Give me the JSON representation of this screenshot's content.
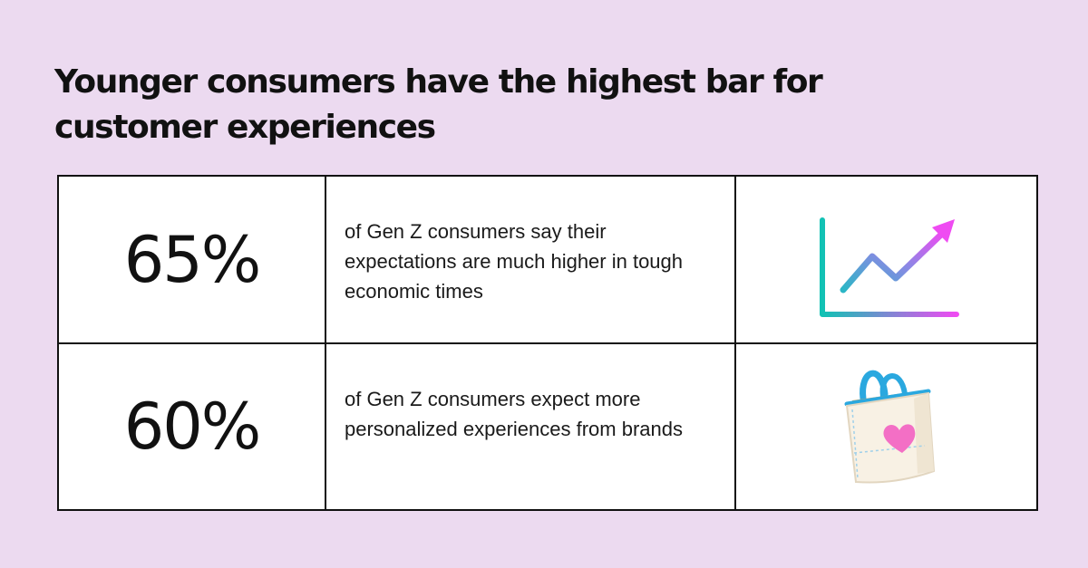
{
  "title": "Younger consumers have the highest bar for customer experiences",
  "stats": [
    {
      "value": "65%",
      "description": "of Gen Z consumers say their expectations are much higher in tough economic times",
      "icon": "rising-chart-icon"
    },
    {
      "value": "60%",
      "description": "of Gen Z consumers expect more personalized experiences from brands",
      "icon": "shopping-bag-heart-icon"
    }
  ],
  "colors": {
    "background": "#ecdaf0",
    "text": "#111111",
    "table_background": "#ffffff",
    "gradient_start": "#11c2b4",
    "gradient_end": "#ef4bf2",
    "bag_body": "#f8f1e4",
    "bag_handle": "#2aa8df",
    "bag_heart": "#f36fc5"
  }
}
